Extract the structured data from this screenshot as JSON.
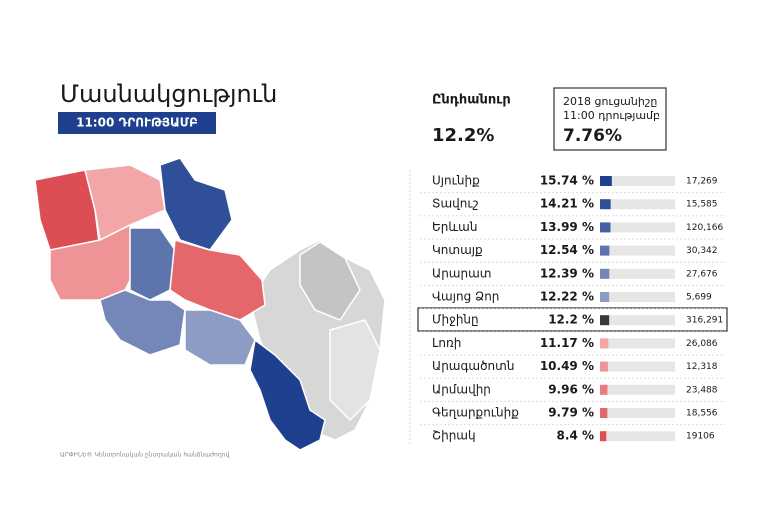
{
  "header": {
    "title": "Մասնակցություն",
    "badge": "11:00 ԴՐՈՒԹՅԱՄԲ",
    "total_label": "Ընդհանուր",
    "total_value": "12.2%",
    "prev_label_1": "2018 ցուցանիշը",
    "prev_label_2": "11:00 դրությամբ",
    "prev_value": "7.76%"
  },
  "footer": "ԱՐՓԻՆԵ® Կենտրոնական ընտրական հանձնաժողով",
  "chart_data": {
    "type": "bar",
    "categories": [
      "Սյունիք",
      "Տավուշ",
      "Երևան",
      "Կոտայք",
      "Արարատ",
      "Վայոց Ձոր",
      "Միջինը",
      "Լոռի",
      "Արագածոտն",
      "Արմավիր",
      "Գեղարքունիք",
      "Շիրակ"
    ],
    "values": [
      15.74,
      14.21,
      13.99,
      12.54,
      12.39,
      12.22,
      12.2,
      11.17,
      10.49,
      9.96,
      9.79,
      8.4
    ],
    "value_labels": [
      "15.74 %",
      "14.21 %",
      "13.99 %",
      "12.54 %",
      "12.39 %",
      "12.22 %",
      "12.2 %",
      "11.17 %",
      "10.49 %",
      "9.96 %",
      "9.79 %",
      "8.4 %"
    ],
    "counts": [
      "17,269",
      "15,585",
      "120,166",
      "30,342",
      "27,676",
      "5,699",
      "316,291",
      "26,086",
      "12,318",
      "23,488",
      "18,556",
      "19106"
    ],
    "colors": [
      "#1f3f8f",
      "#2f4f99",
      "#4761a3",
      "#5d74ad",
      "#7487b8",
      "#8d9cc4",
      "#3a3a3a",
      "#f2a6a8",
      "#ee9396",
      "#e97a7e",
      "#e4676c",
      "#dd4d54"
    ],
    "xlim": [
      0,
      100
    ]
  }
}
